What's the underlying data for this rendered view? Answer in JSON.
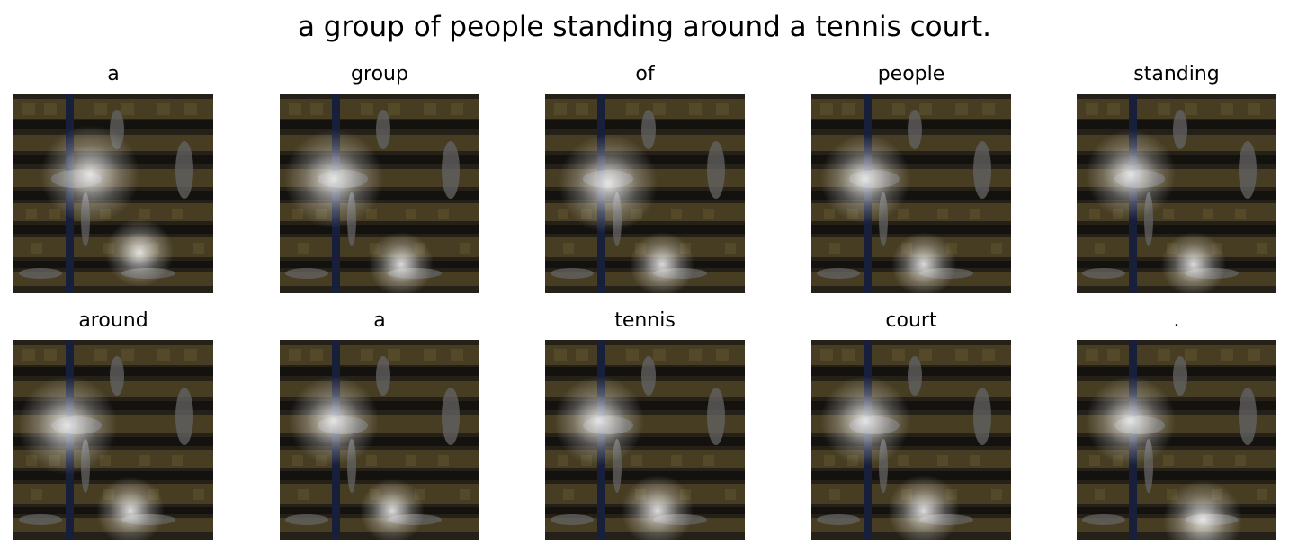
{
  "title": "a group of people standing around a tennis court.",
  "panels": [
    {
      "word": "a"
    },
    {
      "word": "group"
    },
    {
      "word": "of"
    },
    {
      "word": "people"
    },
    {
      "word": "standing"
    },
    {
      "word": "around"
    },
    {
      "word": "a"
    },
    {
      "word": "tennis"
    },
    {
      "word": "court"
    },
    {
      "word": "."
    }
  ]
}
